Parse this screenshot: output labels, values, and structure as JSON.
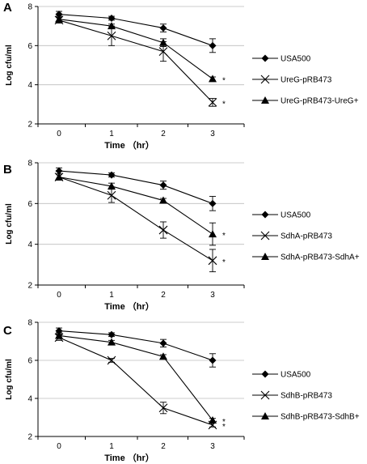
{
  "chart_data": [
    {
      "panel": "A",
      "type": "line",
      "x": [
        0,
        1,
        2,
        3
      ],
      "xlabel": "Time （hr）",
      "ylabel": "Log cfu/ml",
      "ylim": [
        2,
        8
      ],
      "yticks": [
        2,
        4,
        6,
        8
      ],
      "grid": "horizontal",
      "legend": "right",
      "series": [
        {
          "name": "USA500",
          "marker": "diamond",
          "values": [
            7.6,
            7.4,
            6.9,
            6.0
          ],
          "errors": [
            0.15,
            0.1,
            0.2,
            0.35
          ]
        },
        {
          "name": "UreG-pRB473",
          "marker": "x",
          "values": [
            7.3,
            6.5,
            5.7,
            3.1
          ],
          "errors": [
            0.15,
            0.5,
            0.5,
            0.2
          ]
        },
        {
          "name": "UreG-pRB473-UreG+",
          "marker": "triangle",
          "values": [
            7.35,
            7.0,
            6.15,
            4.3
          ],
          "errors": [
            0.15,
            0.1,
            0.2,
            0.1
          ]
        }
      ],
      "annotations": [
        {
          "text": "*",
          "series": 2,
          "x": 3
        },
        {
          "text": "*",
          "series": 1,
          "x": 3
        }
      ]
    },
    {
      "panel": "B",
      "type": "line",
      "x": [
        0,
        1,
        2,
        3
      ],
      "xlabel": "Time （hr）",
      "ylabel": "Log cfu/ml",
      "ylim": [
        2,
        8
      ],
      "yticks": [
        2,
        4,
        6,
        8
      ],
      "grid": "horizontal",
      "legend": "right",
      "series": [
        {
          "name": "USA500",
          "marker": "diamond",
          "values": [
            7.6,
            7.4,
            6.9,
            6.0
          ],
          "errors": [
            0.15,
            0.1,
            0.2,
            0.35
          ]
        },
        {
          "name": "SdhA-pRB473",
          "marker": "x",
          "values": [
            7.3,
            6.4,
            4.7,
            3.2
          ],
          "errors": [
            0.15,
            0.35,
            0.4,
            0.55
          ]
        },
        {
          "name": "SdhA-pRB473-SdhA+",
          "marker": "triangle",
          "values": [
            7.3,
            6.85,
            6.15,
            4.5
          ],
          "errors": [
            0.15,
            0.15,
            0.1,
            0.55
          ]
        }
      ],
      "annotations": [
        {
          "text": "*",
          "series": 2,
          "x": 3
        },
        {
          "text": "*",
          "series": 1,
          "x": 3
        }
      ]
    },
    {
      "panel": "C",
      "type": "line",
      "x": [
        0,
        1,
        2,
        3
      ],
      "xlabel": "Time （hr）",
      "ylabel": "Log cfu/ml",
      "ylim": [
        2,
        8
      ],
      "yticks": [
        2,
        4,
        6,
        8
      ],
      "grid": "horizontal",
      "legend": "right",
      "series": [
        {
          "name": "USA500",
          "marker": "diamond",
          "values": [
            7.55,
            7.35,
            6.9,
            6.0
          ],
          "errors": [
            0.15,
            0.1,
            0.2,
            0.35
          ]
        },
        {
          "name": "SdhB-pRB473",
          "marker": "x",
          "values": [
            7.2,
            6.0,
            3.5,
            2.6
          ],
          "errors": [
            0.15,
            0.1,
            0.3,
            0.1
          ]
        },
        {
          "name": "SdhB-pRB473-SdhB+",
          "marker": "triangle",
          "values": [
            7.3,
            6.95,
            6.2,
            2.85
          ],
          "errors": [
            0.15,
            0.1,
            0.1,
            0.1
          ]
        }
      ],
      "annotations": [
        {
          "text": "*",
          "series": 2,
          "x": 3
        },
        {
          "text": "*",
          "series": 1,
          "x": 3
        }
      ]
    }
  ]
}
